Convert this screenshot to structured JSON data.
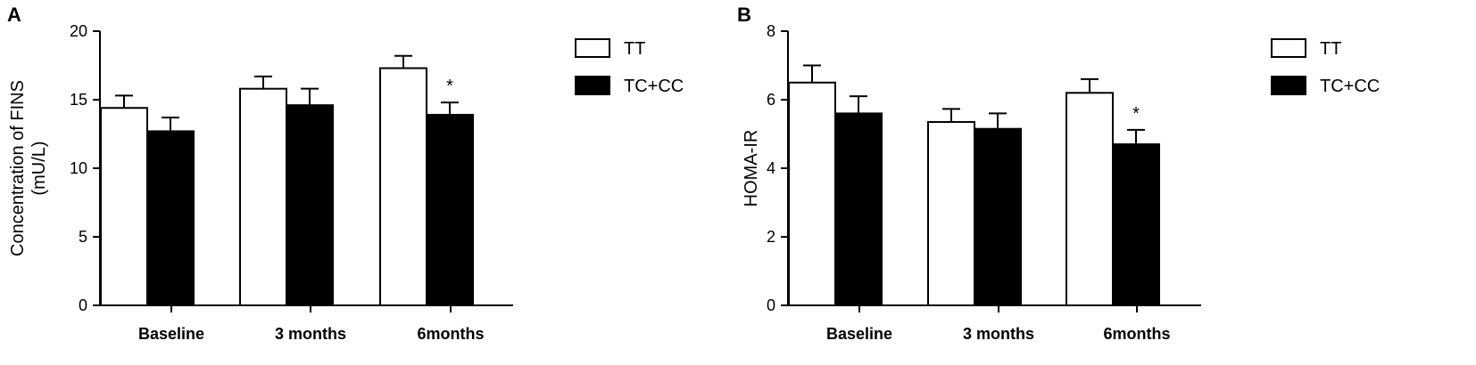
{
  "chart_data": [
    {
      "type": "bar",
      "panel": "A",
      "ylabel": "Concentration of FINS",
      "ylabel_unit": "(mU/L)",
      "ylim": [
        0,
        20
      ],
      "yticks": [
        0,
        5,
        10,
        15,
        20
      ],
      "categories": [
        "Baseline",
        "3 months",
        "6months"
      ],
      "series": [
        {
          "name": "TT",
          "fill": "#ffffff",
          "values": [
            14.4,
            15.8,
            17.3
          ],
          "errors": [
            0.9,
            0.9,
            0.9
          ]
        },
        {
          "name": "TC+CC",
          "fill": "#000000",
          "values": [
            12.7,
            14.6,
            13.9
          ],
          "errors": [
            1.0,
            1.2,
            0.9
          ]
        }
      ],
      "annotations": [
        {
          "category": 2,
          "series": 1,
          "text": "*"
        }
      ],
      "legend_position": "top-right"
    },
    {
      "type": "bar",
      "panel": "B",
      "ylabel": "HOMA-IR",
      "ylabel_unit": "",
      "ylim": [
        0,
        8
      ],
      "yticks": [
        0,
        2,
        4,
        6,
        8
      ],
      "categories": [
        "Baseline",
        "3 months",
        "6months"
      ],
      "series": [
        {
          "name": "TT",
          "fill": "#ffffff",
          "values": [
            6.5,
            5.35,
            6.2
          ],
          "errors": [
            0.5,
            0.38,
            0.4
          ]
        },
        {
          "name": "TC+CC",
          "fill": "#000000",
          "values": [
            5.6,
            5.15,
            4.7
          ],
          "errors": [
            0.5,
            0.45,
            0.42
          ]
        }
      ],
      "annotations": [
        {
          "category": 2,
          "series": 1,
          "text": "*"
        }
      ],
      "legend_position": "top-right"
    }
  ]
}
